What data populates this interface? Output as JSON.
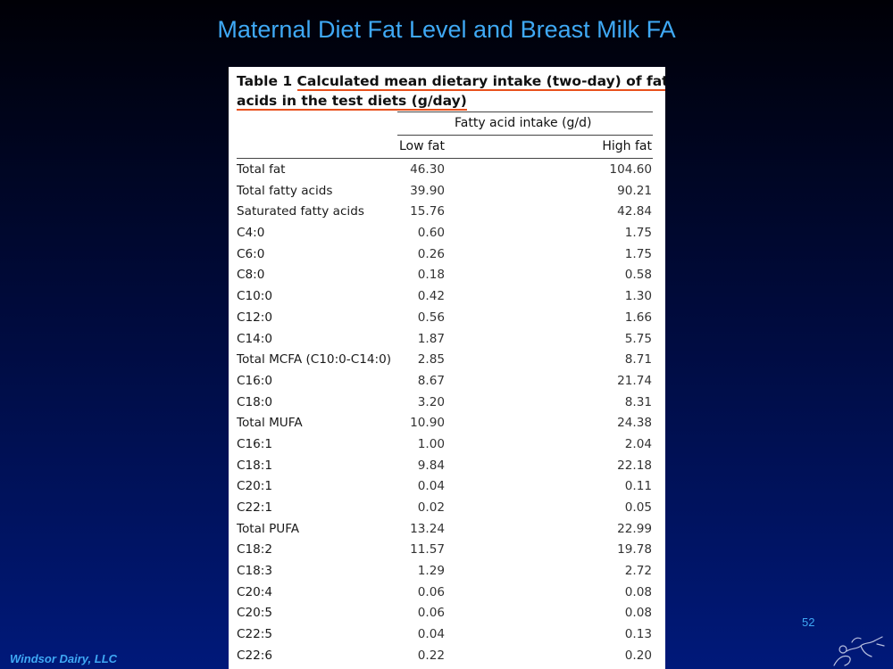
{
  "slide": {
    "title": "Maternal Diet Fat Level and Breast Milk FA",
    "page_number": "52",
    "footer_company": "Windsor Dairy, LLC"
  },
  "table": {
    "caption_line1_prefix": "Table 1 ",
    "caption_line1_underlined": "Calculated mean dietary intake (two-day) of fatty",
    "caption_line2_underlined": "acids in the test diets (g/day)",
    "group_header": "Fatty acid intake (g/d)",
    "columns": [
      "Low fat",
      "High fat"
    ],
    "rows": [
      {
        "label": "Total fat",
        "low": "46.30",
        "high": "104.60"
      },
      {
        "label": "Total fatty acids",
        "low": "39.90",
        "high": "90.21"
      },
      {
        "label": "Saturated fatty acids",
        "low": "15.76",
        "high": "42.84"
      },
      {
        "label": "C4:0",
        "low": "0.60",
        "high": "1.75"
      },
      {
        "label": "C6:0",
        "low": "0.26",
        "high": "1.75"
      },
      {
        "label": "C8:0",
        "low": "0.18",
        "high": "0.58"
      },
      {
        "label": "C10:0",
        "low": "0.42",
        "high": "1.30"
      },
      {
        "label": "C12:0",
        "low": "0.56",
        "high": "1.66"
      },
      {
        "label": "C14:0",
        "low": "1.87",
        "high": "5.75"
      },
      {
        "label": "Total MCFA (C10:0-C14:0)",
        "low": "2.85",
        "high": "8.71"
      },
      {
        "label": "C16:0",
        "low": "8.67",
        "high": "21.74"
      },
      {
        "label": "C18:0",
        "low": "3.20",
        "high": "8.31"
      },
      {
        "label": "Total MUFA",
        "low": "10.90",
        "high": "24.38"
      },
      {
        "label": "C16:1",
        "low": "1.00",
        "high": "2.04"
      },
      {
        "label": "C18:1",
        "low": "9.84",
        "high": "22.18"
      },
      {
        "label": "C20:1",
        "low": "0.04",
        "high": "0.11"
      },
      {
        "label": "C22:1",
        "low": "0.02",
        "high": "0.05"
      },
      {
        "label": "Total PUFA",
        "low": "13.24",
        "high": "22.99"
      },
      {
        "label": "C18:2",
        "low": "11.57",
        "high": "19.78"
      },
      {
        "label": "C18:3",
        "low": "1.29",
        "high": "2.72"
      },
      {
        "label": "C20:4",
        "low": "0.06",
        "high": "0.08"
      },
      {
        "label": "C20:5",
        "low": "0.06",
        "high": "0.08"
      },
      {
        "label": "C22:5",
        "low": "0.04",
        "high": "0.13"
      },
      {
        "label": "C22:6",
        "low": "0.22",
        "high": "0.20"
      }
    ]
  },
  "colors": {
    "title_blue": "#3fa9f5",
    "underline_orange": "#e8501c",
    "background_top": "#000006",
    "background_bottom": "#00197a"
  },
  "icons": {
    "logo": "sketch-logo-icon"
  }
}
